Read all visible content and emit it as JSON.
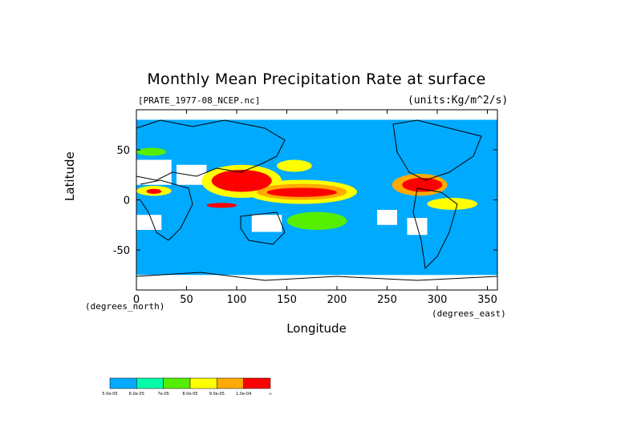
{
  "chart_data": {
    "type": "heatmap",
    "title": "Monthly Mean Precipitation Rate at surface",
    "subtitle_left": "[PRATE_1977-08_NCEP.nc]",
    "subtitle_right": "(units:Kg/m^2/s)",
    "xlabel": "Longitude",
    "ylabel": "Latitude",
    "x_unit_label": "(degrees_north)",
    "x_unit_label_right": "(degrees_east)",
    "xlim": [
      0,
      360
    ],
    "ylim": [
      -90,
      90
    ],
    "x_ticks": [
      0,
      50,
      100,
      150,
      200,
      250,
      300,
      350
    ],
    "y_ticks": [
      50,
      0,
      -50
    ],
    "x_tick_labels": [
      "0",
      "50",
      "100",
      "150",
      "200",
      "250",
      "300",
      "350"
    ],
    "y_tick_labels": [
      "50",
      "0",
      "-50"
    ],
    "colorbar": {
      "colors": [
        "#00aaff",
        "#00ffaa",
        "#55ee00",
        "#ffff00",
        "#ffaa00",
        "#ff0000"
      ],
      "labels": [
        "5.0e-05",
        "6.0e-05",
        "7e-05",
        "8.0e-05",
        "9.0e-05",
        "1.0e-04",
        "∞"
      ]
    },
    "regions": [
      {
        "level": 5,
        "lon": [
          75,
          135
        ],
        "lat": [
          8,
          30
        ]
      },
      {
        "level": 5,
        "lon": [
          130,
          200
        ],
        "lat": [
          3,
          12
        ]
      },
      {
        "level": 4,
        "lon": [
          120,
          210
        ],
        "lat": [
          0,
          16
        ]
      },
      {
        "level": 5,
        "lon": [
          265,
          305
        ],
        "lat": [
          8,
          22
        ]
      },
      {
        "level": 4,
        "lon": [
          255,
          310
        ],
        "lat": [
          4,
          26
        ]
      },
      {
        "level": 3,
        "lon": [
          65,
          145
        ],
        "lat": [
          2,
          35
        ]
      },
      {
        "level": 3,
        "lon": [
          110,
          220
        ],
        "lat": [
          -4,
          20
        ]
      },
      {
        "level": 5,
        "lon": [
          70,
          100
        ],
        "lat": [
          -8,
          -3
        ]
      },
      {
        "level": 3,
        "lon": [
          0,
          35
        ],
        "lat": [
          4,
          14
        ]
      },
      {
        "level": 5,
        "lon": [
          10,
          25
        ],
        "lat": [
          6,
          11
        ]
      },
      {
        "level": 3,
        "lon": [
          140,
          175
        ],
        "lat": [
          28,
          40
        ]
      },
      {
        "level": 2,
        "lon": [
          0,
          30
        ],
        "lat": [
          44,
          52
        ]
      },
      {
        "level": 3,
        "lon": [
          290,
          340
        ],
        "lat": [
          -10,
          2
        ]
      },
      {
        "level": 2,
        "lon": [
          150,
          210
        ],
        "lat": [
          -30,
          -12
        ]
      }
    ],
    "dry_regions_white": [
      {
        "lon": [
          0,
          35
        ],
        "lat": [
          15,
          40
        ]
      },
      {
        "lon": [
          40,
          70
        ],
        "lat": [
          15,
          35
        ]
      },
      {
        "lon": [
          115,
          145
        ],
        "lat": [
          -32,
          -15
        ]
      },
      {
        "lon": [
          0,
          25
        ],
        "lat": [
          -30,
          -15
        ]
      },
      {
        "lon": [
          240,
          260
        ],
        "lat": [
          -25,
          -10
        ]
      },
      {
        "lon": [
          270,
          290
        ],
        "lat": [
          -35,
          -18
        ]
      },
      {
        "lon": [
          0,
          360
        ],
        "lat": [
          -90,
          -75
        ]
      },
      {
        "lon": [
          0,
          360
        ],
        "lat": [
          80,
          90
        ]
      }
    ]
  }
}
